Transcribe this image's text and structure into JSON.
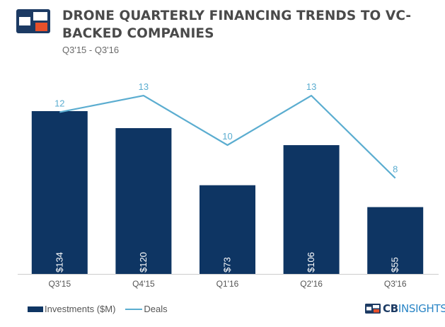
{
  "header": {
    "title": "DRONE QUARTERLY FINANCING TRENDS TO VC-BACKED COMPANIES",
    "subtitle": "Q3'15 - Q3'16"
  },
  "brand": {
    "logo_icon": "cb-insights-logo-icon",
    "text_cb": "CB",
    "text_insights": "INSIGHTS"
  },
  "colors": {
    "bar": "#0e3563",
    "line": "#5badd0",
    "logo_dark": "#1c3a63",
    "logo_accent": "#e8502a"
  },
  "chart_data": {
    "type": "bar",
    "categories": [
      "Q3'15",
      "Q4'15",
      "Q1'16",
      "Q2'16",
      "Q3'16"
    ],
    "series": [
      {
        "name": "Investments ($M)",
        "type": "bar",
        "values": [
          134,
          120,
          73,
          106,
          55
        ],
        "labels": [
          "$134",
          "$120",
          "$73",
          "$106",
          "$55"
        ]
      },
      {
        "name": "Deals",
        "type": "line",
        "values": [
          12,
          13,
          10,
          13,
          8
        ]
      }
    ],
    "legend": "bottom-left",
    "grid": false
  }
}
